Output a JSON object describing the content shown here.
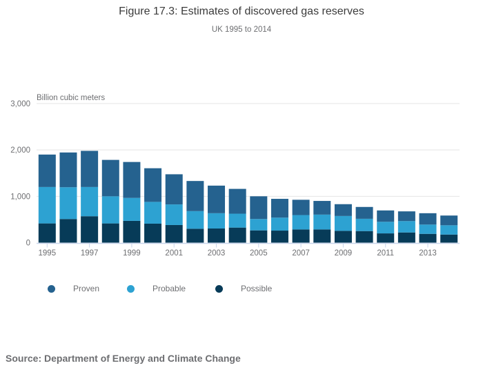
{
  "header": {
    "title": "Figure 17.3: Estimates of discovered gas reserves",
    "subtitle": "UK 1995 to 2014"
  },
  "chart_data": {
    "type": "bar",
    "stacked": true,
    "title": "Figure 17.3: Estimates of discovered gas reserves",
    "subtitle": "UK 1995 to 2014",
    "unit_label": "Billion cubic meters",
    "ylabel": "Billion cubic meters",
    "xlabel": "",
    "categories": [
      1995,
      1996,
      1997,
      1998,
      1999,
      2000,
      2001,
      2002,
      2003,
      2004,
      2005,
      2006,
      2007,
      2008,
      2009,
      2010,
      2011,
      2012,
      2013,
      2014
    ],
    "series": [
      {
        "name": "Proven",
        "color": "#25628F",
        "values": [
          700,
          750,
          780,
          785,
          775,
          725,
          650,
          650,
          595,
          535,
          490,
          405,
          330,
          295,
          255,
          255,
          245,
          210,
          245,
          210
        ]
      },
      {
        "name": "Probable",
        "color": "#2DA2D2",
        "values": [
          785,
          685,
          630,
          585,
          495,
          470,
          445,
          380,
          330,
          300,
          245,
          280,
          310,
          320,
          320,
          265,
          250,
          245,
          200,
          200
        ]
      },
      {
        "name": "Possible",
        "color": "#073B58",
        "values": [
          415,
          510,
          570,
          415,
          470,
          410,
          380,
          300,
          305,
          325,
          265,
          260,
          285,
          285,
          255,
          250,
          200,
          220,
          190,
          175
        ]
      }
    ],
    "stack_order_bottom_to_top": [
      "Possible",
      "Probable",
      "Proven"
    ],
    "ylim": [
      0,
      3000
    ],
    "yticks": [
      0,
      1000,
      2000,
      3000
    ],
    "ytick_labels": [
      "0",
      "1,000",
      "2,000",
      "3,000"
    ],
    "xtick_labels": [
      "1995",
      "1997",
      "1999",
      "2001",
      "2003",
      "2005",
      "2007",
      "2009",
      "2011",
      "2013"
    ],
    "grid": true,
    "legend_position": "bottom"
  },
  "legend": {
    "items": [
      {
        "label": "Proven",
        "color": "#25628F"
      },
      {
        "label": "Probable",
        "color": "#2DA2D2"
      },
      {
        "label": "Possible",
        "color": "#073B58"
      }
    ]
  },
  "footer": {
    "source": "Source: Department of Energy and Climate Change"
  },
  "colors": {
    "gridline": "#e4e4e4",
    "axis_line": "#c8d5ec",
    "title_text": "#3b3b3b",
    "muted_text": "#6d6e71"
  }
}
